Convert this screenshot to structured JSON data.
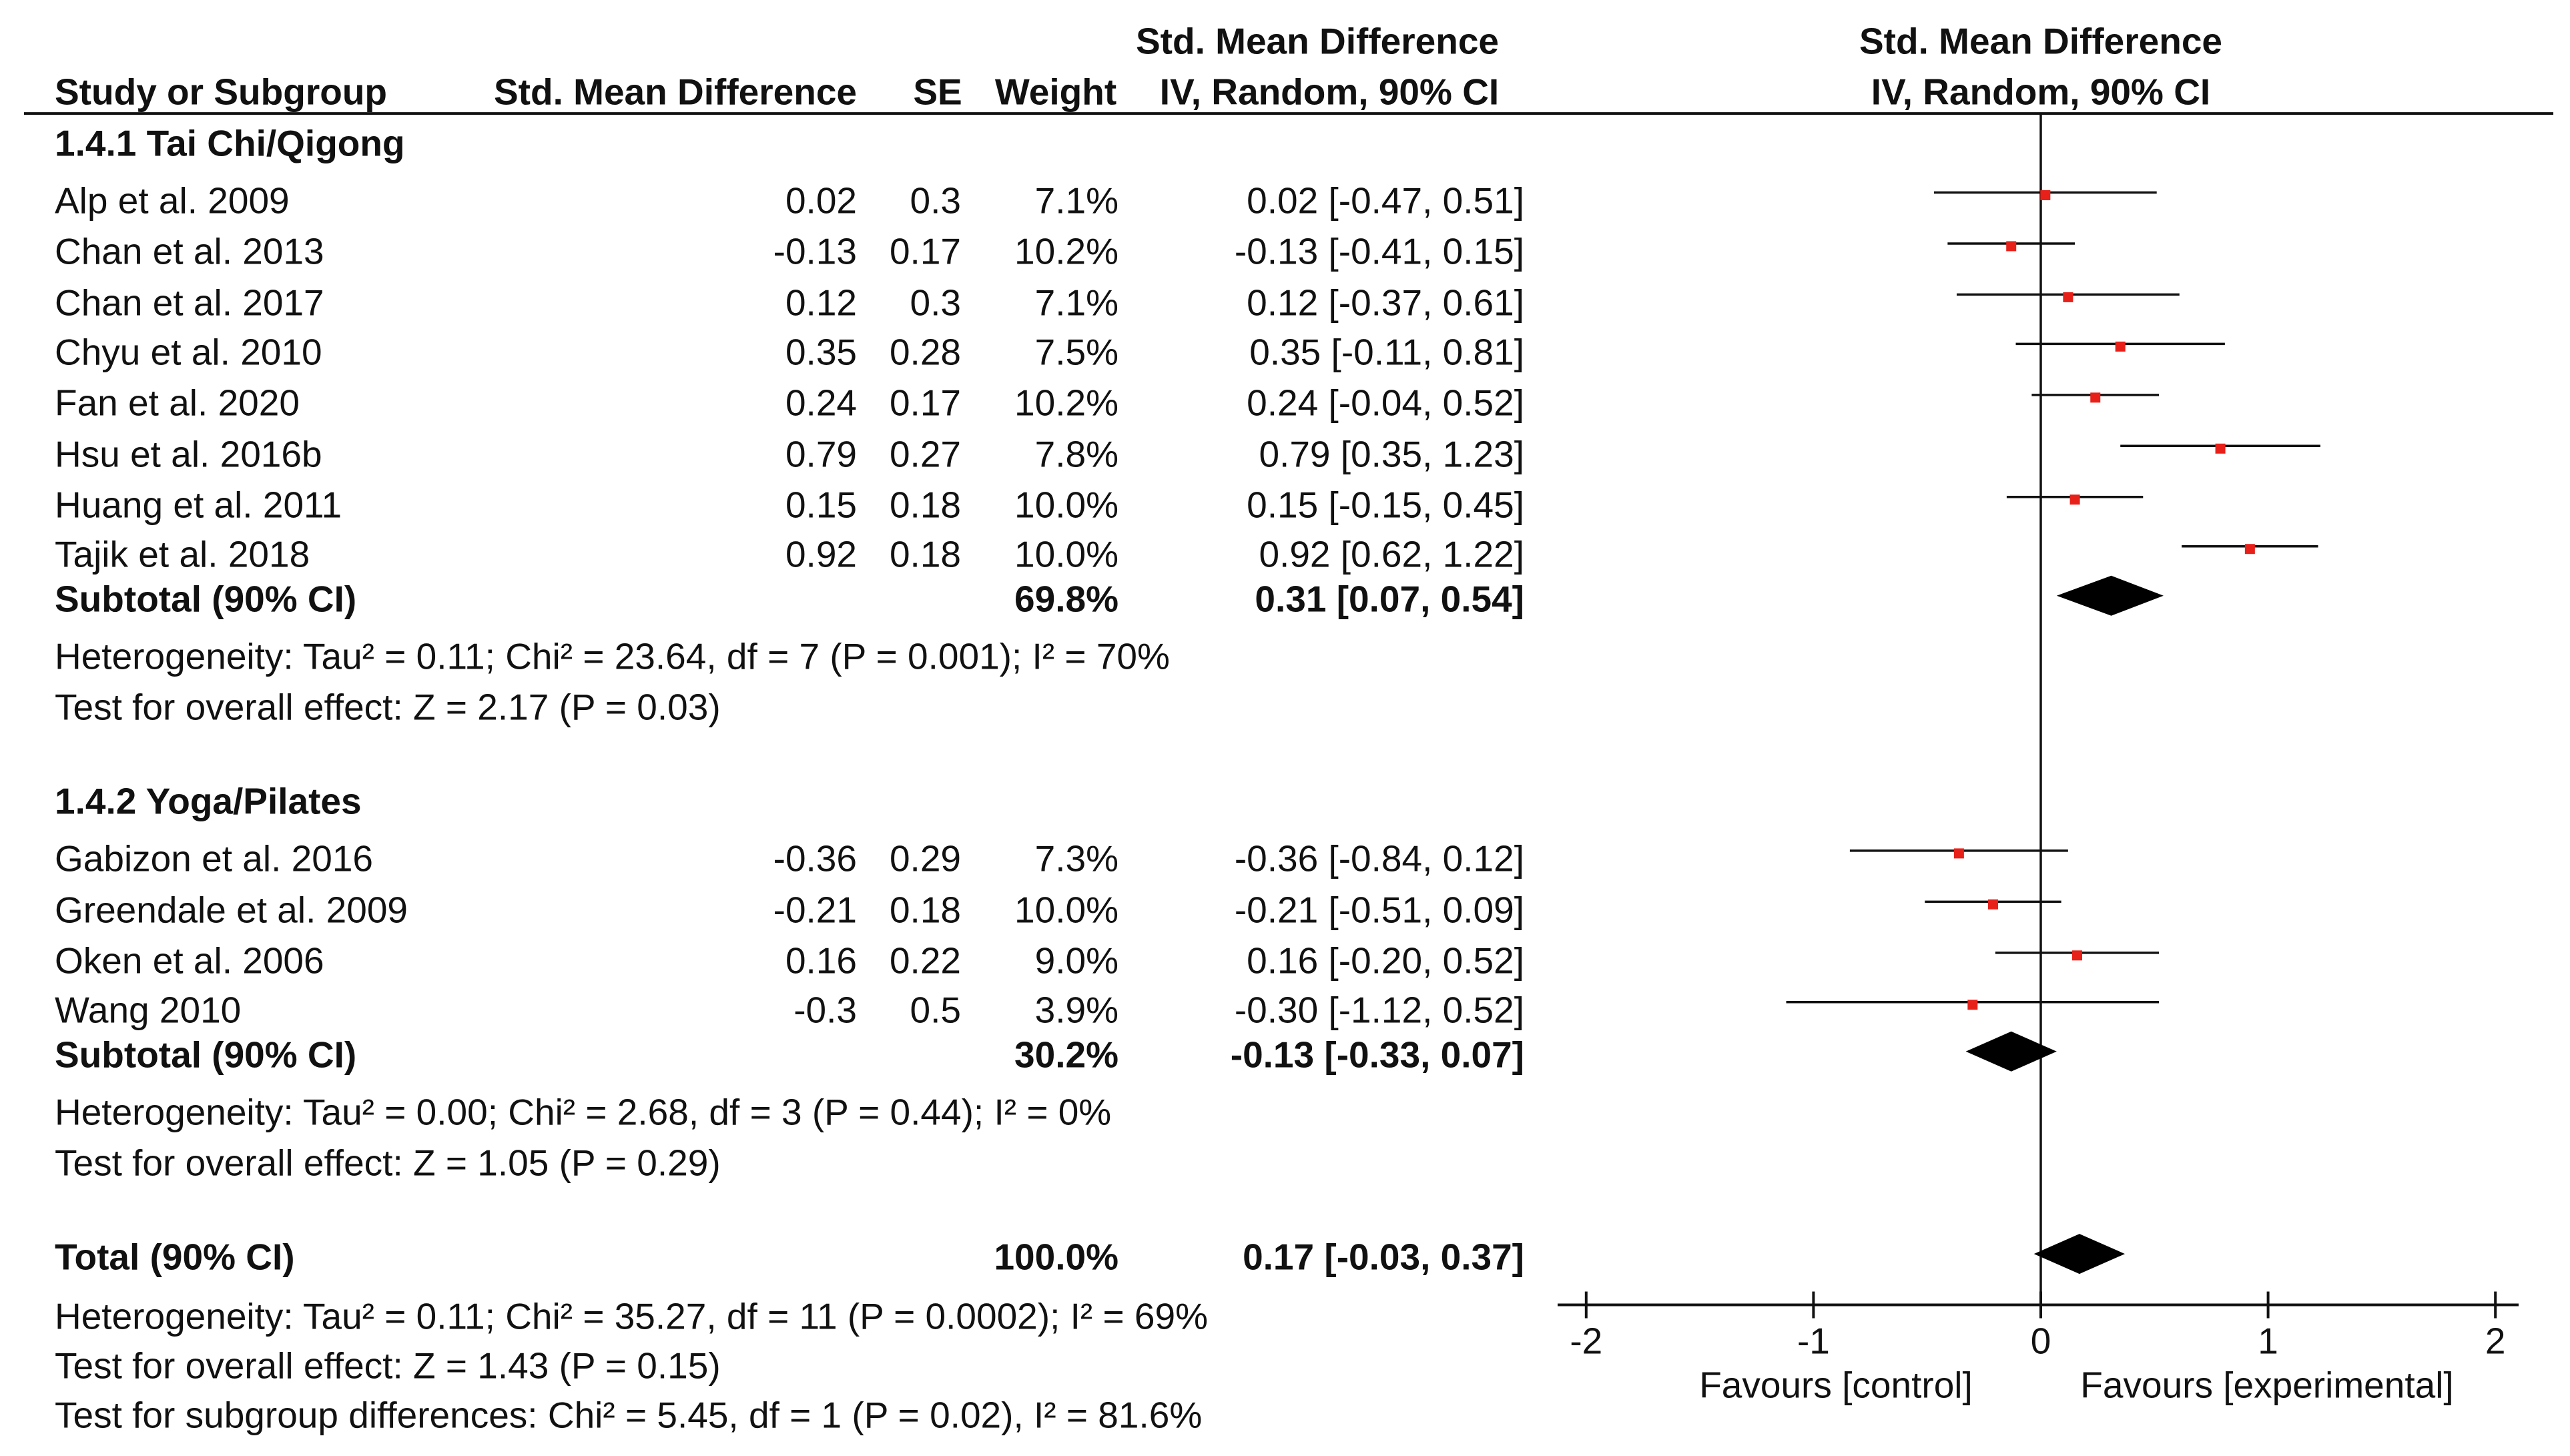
{
  "chart_data": {
    "type": "forest",
    "header": {
      "study": "Study or Subgroup",
      "smd": "Std. Mean Difference",
      "se": "SE",
      "weight": "Weight",
      "ci_line1": "Std. Mean Difference",
      "ci_line2": "IV, Random, 90% CI",
      "plot_line1": "Std. Mean Difference",
      "plot_line2": "IV, Random, 90% CI"
    },
    "groups": [
      {
        "title": "1.4.1 Tai Chi/Qigong",
        "studies": [
          {
            "name": "Alp et al. 2009",
            "smd": "0.02",
            "se": "0.3",
            "weight": "7.1%",
            "ci": "0.02 [-0.47, 0.51]",
            "est": 0.02,
            "lo": -0.47,
            "hi": 0.51
          },
          {
            "name": "Chan et al. 2013",
            "smd": "-0.13",
            "se": "0.17",
            "weight": "10.2%",
            "ci": "-0.13 [-0.41, 0.15]",
            "est": -0.13,
            "lo": -0.41,
            "hi": 0.15
          },
          {
            "name": "Chan et al. 2017",
            "smd": "0.12",
            "se": "0.3",
            "weight": "7.1%",
            "ci": "0.12 [-0.37, 0.61]",
            "est": 0.12,
            "lo": -0.37,
            "hi": 0.61
          },
          {
            "name": "Chyu et al. 2010",
            "smd": "0.35",
            "se": "0.28",
            "weight": "7.5%",
            "ci": "0.35 [-0.11, 0.81]",
            "est": 0.35,
            "lo": -0.11,
            "hi": 0.81
          },
          {
            "name": "Fan et al. 2020",
            "smd": "0.24",
            "se": "0.17",
            "weight": "10.2%",
            "ci": "0.24 [-0.04, 0.52]",
            "est": 0.24,
            "lo": -0.04,
            "hi": 0.52
          },
          {
            "name": "Hsu et al. 2016b",
            "smd": "0.79",
            "se": "0.27",
            "weight": "7.8%",
            "ci": "0.79 [0.35, 1.23]",
            "est": 0.79,
            "lo": 0.35,
            "hi": 1.23
          },
          {
            "name": "Huang et al. 2011",
            "smd": "0.15",
            "se": "0.18",
            "weight": "10.0%",
            "ci": "0.15 [-0.15, 0.45]",
            "est": 0.15,
            "lo": -0.15,
            "hi": 0.45
          },
          {
            "name": "Tajik et al. 2018",
            "smd": "0.92",
            "se": "0.18",
            "weight": "10.0%",
            "ci": "0.92 [0.62, 1.22]",
            "est": 0.92,
            "lo": 0.62,
            "hi": 1.22
          }
        ],
        "subtotal": {
          "label": "Subtotal (90% CI)",
          "weight": "69.8%",
          "ci": "0.31 [0.07, 0.54]",
          "est": 0.31,
          "lo": 0.07,
          "hi": 0.54
        },
        "heterogeneity": "Heterogeneity: Tau² = 0.11; Chi² = 23.64, df = 7 (P = 0.001); I² = 70%",
        "overall": "Test for overall effect: Z = 2.17 (P = 0.03)"
      },
      {
        "title": "1.4.2 Yoga/Pilates",
        "studies": [
          {
            "name": "Gabizon et al. 2016",
            "smd": "-0.36",
            "se": "0.29",
            "weight": "7.3%",
            "ci": "-0.36 [-0.84, 0.12]",
            "est": -0.36,
            "lo": -0.84,
            "hi": 0.12
          },
          {
            "name": "Greendale et al. 2009",
            "smd": "-0.21",
            "se": "0.18",
            "weight": "10.0%",
            "ci": "-0.21 [-0.51, 0.09]",
            "est": -0.21,
            "lo": -0.51,
            "hi": 0.09
          },
          {
            "name": "Oken et al. 2006",
            "smd": "0.16",
            "se": "0.22",
            "weight": "9.0%",
            "ci": "0.16 [-0.20, 0.52]",
            "est": 0.16,
            "lo": -0.2,
            "hi": 0.52
          },
          {
            "name": "Wang 2010",
            "smd": "-0.3",
            "se": "0.5",
            "weight": "3.9%",
            "ci": "-0.30 [-1.12, 0.52]",
            "est": -0.3,
            "lo": -1.12,
            "hi": 0.52
          }
        ],
        "subtotal": {
          "label": "Subtotal (90% CI)",
          "weight": "30.2%",
          "ci": "-0.13 [-0.33, 0.07]",
          "est": -0.13,
          "lo": -0.33,
          "hi": 0.07
        },
        "heterogeneity": "Heterogeneity: Tau² = 0.00; Chi² = 2.68, df = 3 (P = 0.44); I² = 0%",
        "overall": "Test for overall effect: Z = 1.05 (P = 0.29)"
      }
    ],
    "total": {
      "label": "Total (90% CI)",
      "weight": "100.0%",
      "ci": "0.17 [-0.03, 0.37]",
      "est": 0.17,
      "lo": -0.03,
      "hi": 0.37,
      "heterogeneity": "Heterogeneity: Tau² = 0.11; Chi² = 35.27, df = 11 (P = 0.0002); I² = 69%",
      "overall": "Test for overall effect: Z = 1.43 (P = 0.15)",
      "subgroup": "Test for subgroup differences: Chi² = 5.45, df = 1 (P = 0.02), I² = 81.6%"
    },
    "axis": {
      "xlim": [
        -2,
        2
      ],
      "ticks": [
        -2,
        -1,
        0,
        1,
        2
      ],
      "tick_labels": [
        "-2",
        "-1",
        "0",
        "1",
        "2"
      ],
      "favours_left": "Favours [control]",
      "favours_right": "Favours [experimental]"
    },
    "colors": {
      "point": "#e8201a",
      "line": "#111111",
      "diamond": "#000000"
    }
  }
}
